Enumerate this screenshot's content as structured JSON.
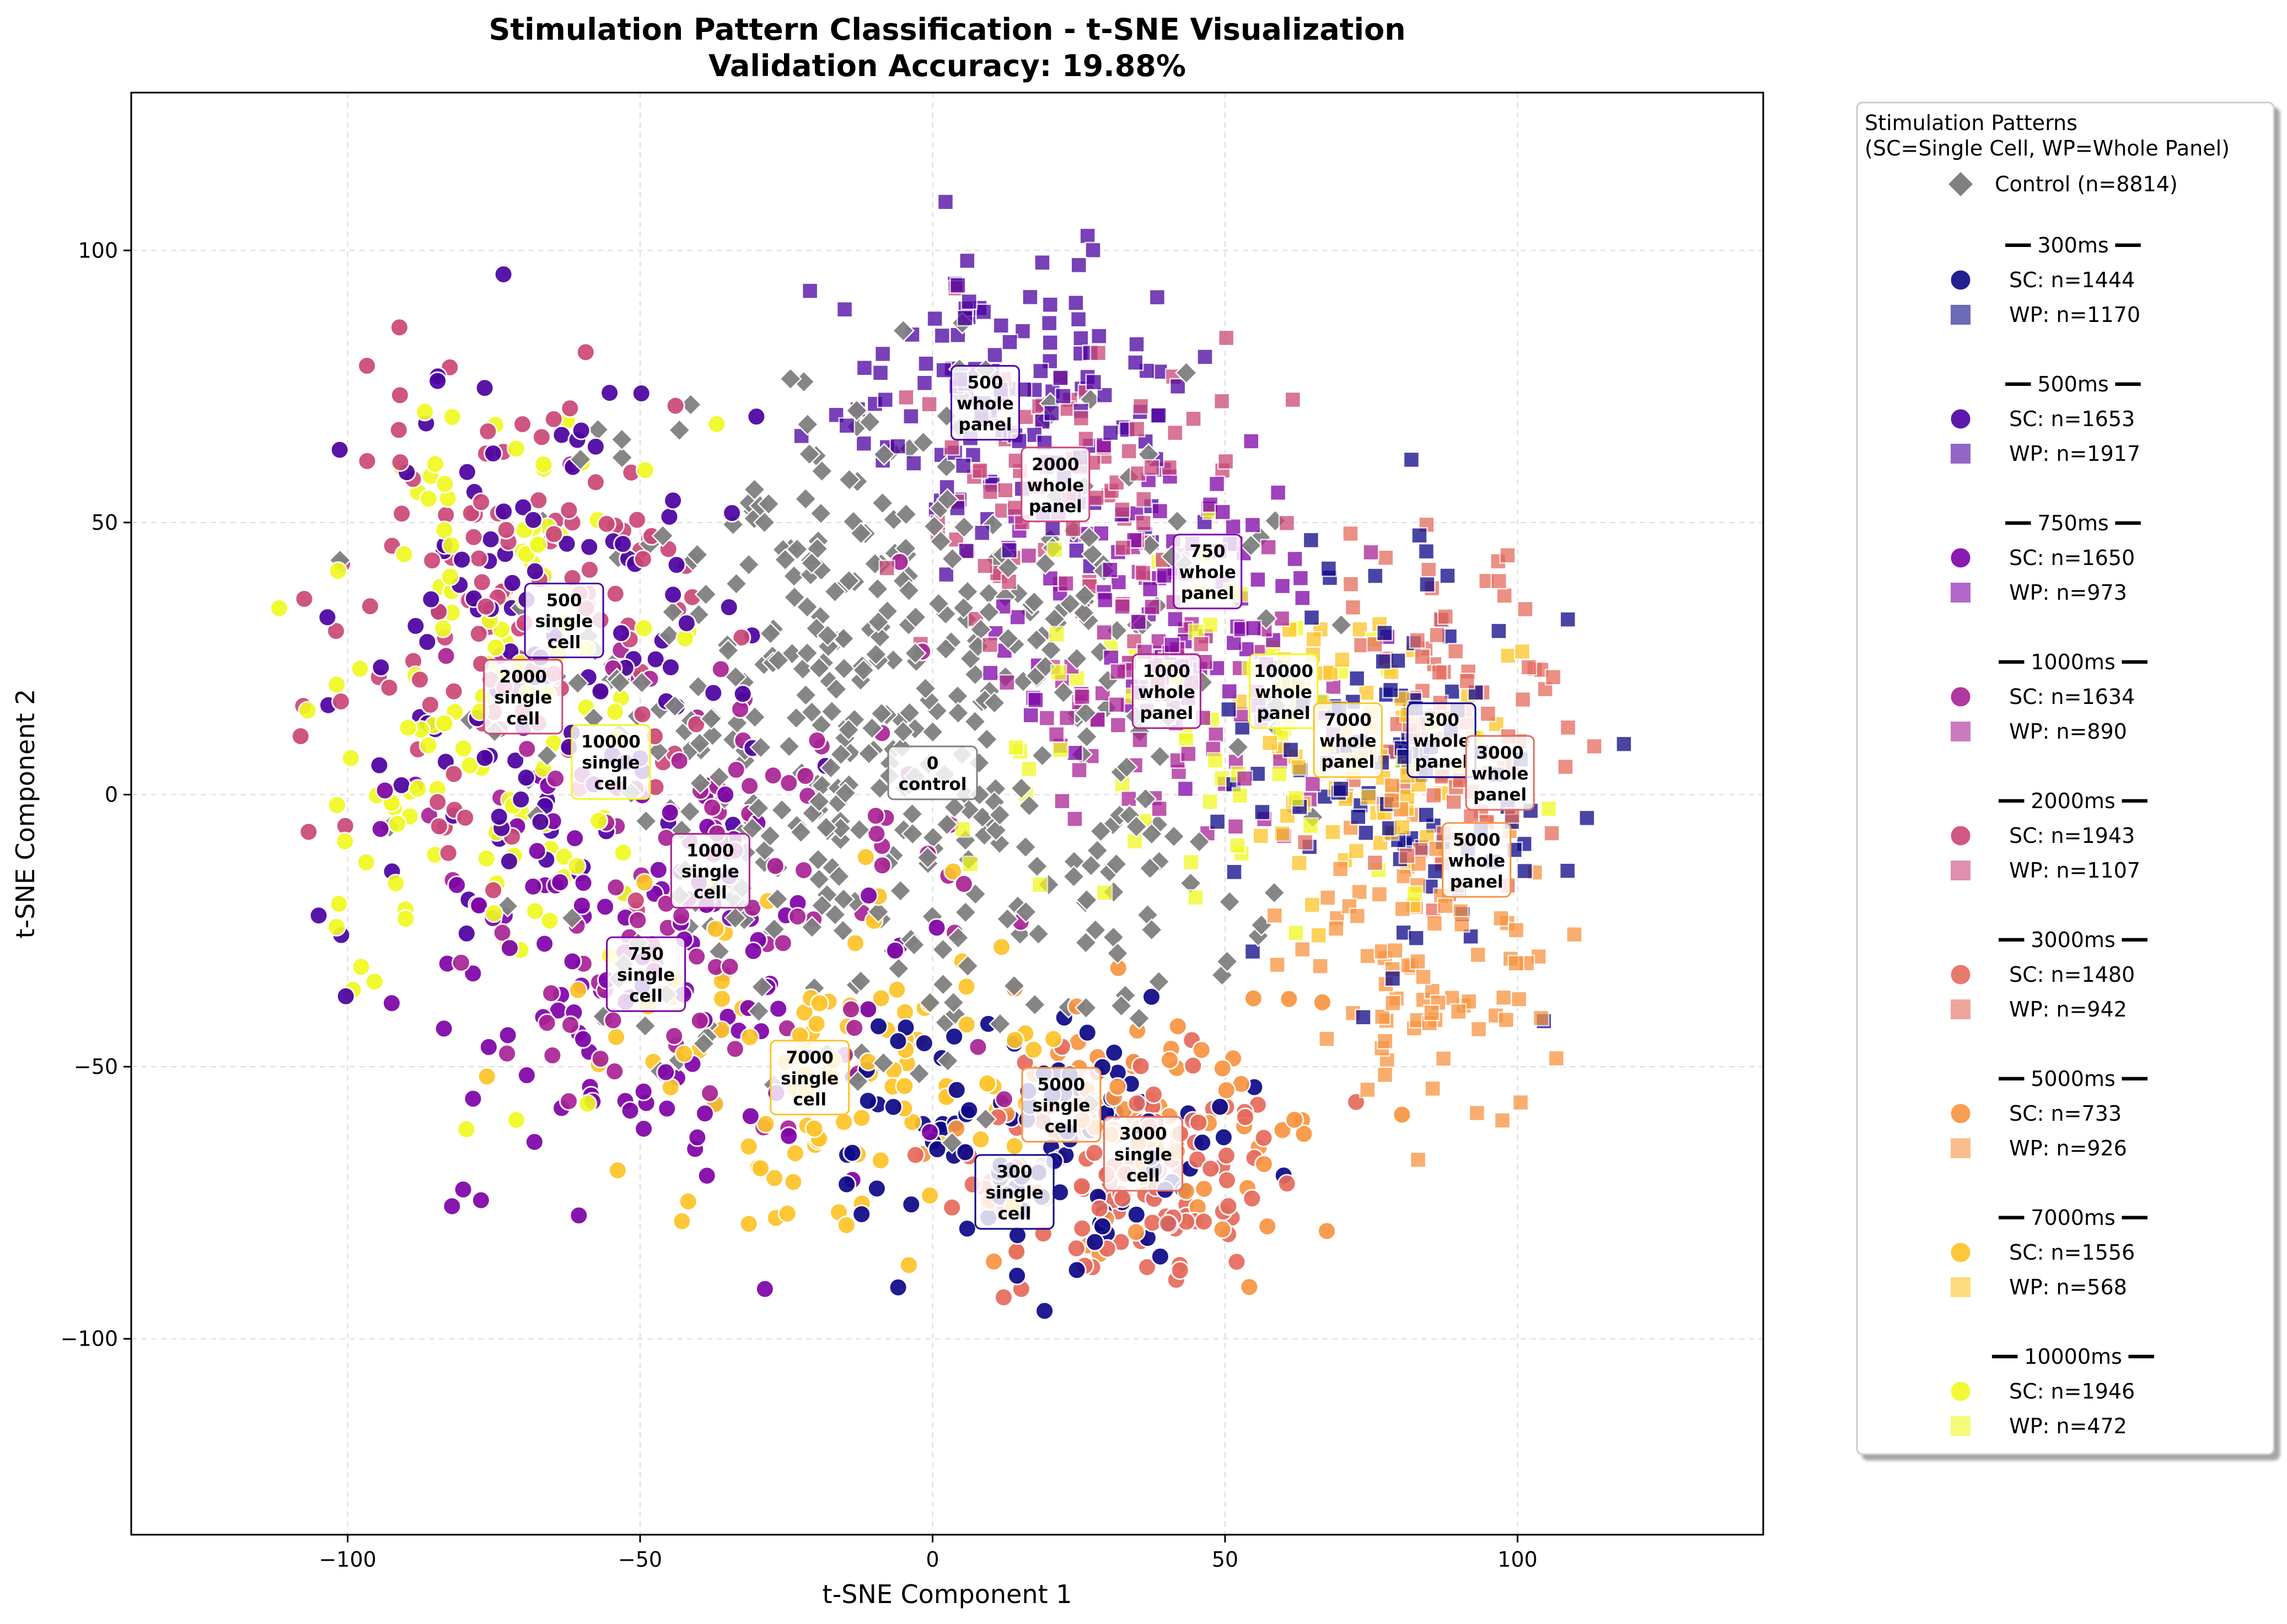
{
  "chart_data": {
    "type": "scatter",
    "title": "Stimulation Pattern Classification - t-SNE Visualization",
    "subtitle": "Validation Accuracy: 19.88%",
    "xlabel": "t-SNE Component 1",
    "ylabel": "t-SNE Component 2",
    "xlim": [
      -137,
      142
    ],
    "ylim": [
      -136,
      129
    ],
    "xticks": [
      -100,
      -50,
      0,
      50,
      100
    ],
    "yticks": [
      -100,
      -50,
      0,
      50,
      100
    ],
    "tick_labels_x": [
      "−100",
      "−50",
      "0",
      "50",
      "100"
    ],
    "tick_labels_y": [
      "−100",
      "−50",
      "0",
      "50",
      "100"
    ],
    "grid": true,
    "legend": {
      "placement": "outside-right",
      "title_line1": "Stimulation Patterns",
      "title_line2": "(SC=Single Cell, WP=Whole Panel)",
      "control": {
        "label": "Control (n=8814)",
        "color": "#808080",
        "marker": "diamond"
      },
      "groups": [
        {
          "header": "━━ 300ms ━━",
          "sc": "SC: n=1444",
          "wp": "WP: n=1170",
          "color": "#0d0887"
        },
        {
          "header": "━━ 500ms ━━",
          "sc": "SC: n=1653",
          "wp": "WP: n=1917",
          "color": "#4c02a1"
        },
        {
          "header": "━━ 750ms ━━",
          "sc": "SC: n=1650",
          "wp": "WP: n=973",
          "color": "#7e03a8"
        },
        {
          "header": "━━ 1000ms ━━",
          "sc": "SC: n=1634",
          "wp": "WP: n=890",
          "color": "#a92395"
        },
        {
          "header": "━━ 2000ms ━━",
          "sc": "SC: n=1943",
          "wp": "WP: n=1107",
          "color": "#cc4778"
        },
        {
          "header": "━━ 3000ms ━━",
          "sc": "SC: n=1480",
          "wp": "WP: n=942",
          "color": "#e56b5d"
        },
        {
          "header": "━━ 5000ms ━━",
          "sc": "SC: n=733",
          "wp": "WP: n=926",
          "color": "#f89441"
        },
        {
          "header": "━━ 7000ms ━━",
          "sc": "SC: n=1556",
          "wp": "WP: n=568",
          "color": "#fdc328"
        },
        {
          "header": "━━ 10000ms ━━",
          "sc": "SC: n=1946",
          "wp": "WP: n=472",
          "color": "#f0f921"
        }
      ]
    },
    "annotations": [
      {
        "lines": [
          "500",
          "whole",
          "panel"
        ],
        "x": 9,
        "y": 72,
        "color": "#4c02a1"
      },
      {
        "lines": [
          "2000",
          "whole",
          "panel"
        ],
        "x": 21,
        "y": 57,
        "color": "#cc4778"
      },
      {
        "lines": [
          "750",
          "whole",
          "panel"
        ],
        "x": 47,
        "y": 41,
        "color": "#7e03a8"
      },
      {
        "lines": [
          "500",
          "single",
          "cell"
        ],
        "x": -63,
        "y": 32,
        "color": "#4c02a1"
      },
      {
        "lines": [
          "2000",
          "single",
          "cell"
        ],
        "x": -70,
        "y": 18,
        "color": "#cc4778"
      },
      {
        "lines": [
          "1000",
          "whole",
          "panel"
        ],
        "x": 40,
        "y": 19,
        "color": "#a92395"
      },
      {
        "lines": [
          "10000",
          "whole",
          "panel"
        ],
        "x": 60,
        "y": 19,
        "color": "#f0f921"
      },
      {
        "lines": [
          "7000",
          "whole",
          "panel"
        ],
        "x": 71,
        "y": 10,
        "color": "#fdc328"
      },
      {
        "lines": [
          "300",
          "whole",
          "panel"
        ],
        "x": 87,
        "y": 10,
        "color": "#0d0887"
      },
      {
        "lines": [
          "3000",
          "whole",
          "panel"
        ],
        "x": 97,
        "y": 4,
        "color": "#e56b5d"
      },
      {
        "lines": [
          "10000",
          "single",
          "cell"
        ],
        "x": -55,
        "y": 6,
        "color": "#f0f921"
      },
      {
        "lines": [
          "0",
          "control"
        ],
        "x": 0,
        "y": 4,
        "color": "#808080"
      },
      {
        "lines": [
          "5000",
          "whole",
          "panel"
        ],
        "x": 93,
        "y": -12,
        "color": "#f89441"
      },
      {
        "lines": [
          "1000",
          "single",
          "cell"
        ],
        "x": -38,
        "y": -14,
        "color": "#a92395"
      },
      {
        "lines": [
          "750",
          "single",
          "cell"
        ],
        "x": -49,
        "y": -33,
        "color": "#7e03a8"
      },
      {
        "lines": [
          "7000",
          "single",
          "cell"
        ],
        "x": -21,
        "y": -52,
        "color": "#fdc328"
      },
      {
        "lines": [
          "5000",
          "single",
          "cell"
        ],
        "x": 22,
        "y": -57,
        "color": "#f89441"
      },
      {
        "lines": [
          "3000",
          "single",
          "cell"
        ],
        "x": 36,
        "y": -66,
        "color": "#e56b5d"
      },
      {
        "lines": [
          "300",
          "single",
          "cell"
        ],
        "x": 14,
        "y": -73,
        "color": "#0d0887"
      }
    ],
    "series": [
      {
        "name": "Control (n=8814)",
        "color": "#808080",
        "marker": "diamond",
        "center": [
          -5,
          12
        ],
        "spread": [
          55,
          55
        ],
        "n": 500
      },
      {
        "name": "SC: n=1444",
        "color": "#0d0887",
        "marker": "circle",
        "center": [
          20,
          -65
        ],
        "spread": [
          30,
          22
        ],
        "n": 110
      },
      {
        "name": "WP: n=1170",
        "color": "#0d0887",
        "marker": "square",
        "center": [
          80,
          5
        ],
        "spread": [
          25,
          35
        ],
        "n": 110
      },
      {
        "name": "SC: n=1653",
        "color": "#4c02a1",
        "marker": "circle",
        "center": [
          -65,
          30
        ],
        "spread": [
          35,
          50
        ],
        "n": 120
      },
      {
        "name": "WP: n=1917",
        "color": "#4c02a1",
        "marker": "square",
        "center": [
          15,
          70
        ],
        "spread": [
          25,
          25
        ],
        "n": 140
      },
      {
        "name": "SC: n=1650",
        "color": "#7e03a8",
        "marker": "circle",
        "center": [
          -50,
          -35
        ],
        "spread": [
          40,
          40
        ],
        "n": 120
      },
      {
        "name": "WP: n=973",
        "color": "#7e03a8",
        "marker": "square",
        "center": [
          40,
          35
        ],
        "spread": [
          25,
          25
        ],
        "n": 90
      },
      {
        "name": "SC: n=1634",
        "color": "#a92395",
        "marker": "circle",
        "center": [
          -40,
          -10
        ],
        "spread": [
          40,
          45
        ],
        "n": 120
      },
      {
        "name": "WP: n=890",
        "color": "#a92395",
        "marker": "square",
        "center": [
          40,
          20
        ],
        "spread": [
          25,
          25
        ],
        "n": 85
      },
      {
        "name": "SC: n=1943",
        "color": "#cc4778",
        "marker": "circle",
        "center": [
          -70,
          30
        ],
        "spread": [
          30,
          40
        ],
        "n": 130
      },
      {
        "name": "WP: n=1107",
        "color": "#cc4778",
        "marker": "square",
        "center": [
          25,
          55
        ],
        "spread": [
          25,
          25
        ],
        "n": 90
      },
      {
        "name": "SC: n=1480",
        "color": "#e56b5d",
        "marker": "circle",
        "center": [
          35,
          -70
        ],
        "spread": [
          30,
          20
        ],
        "n": 110
      },
      {
        "name": "WP: n=942",
        "color": "#e56b5d",
        "marker": "square",
        "center": [
          90,
          15
        ],
        "spread": [
          20,
          30
        ],
        "n": 90
      },
      {
        "name": "SC: n=733",
        "color": "#f89441",
        "marker": "circle",
        "center": [
          40,
          -60
        ],
        "spread": [
          30,
          20
        ],
        "n": 80
      },
      {
        "name": "WP: n=926",
        "color": "#f89441",
        "marker": "square",
        "center": [
          85,
          -30
        ],
        "spread": [
          20,
          30
        ],
        "n": 90
      },
      {
        "name": "SC: n=1556",
        "color": "#fdc328",
        "marker": "circle",
        "center": [
          -15,
          -55
        ],
        "spread": [
          35,
          30
        ],
        "n": 110
      },
      {
        "name": "WP: n=568",
        "color": "#fdc328",
        "marker": "square",
        "center": [
          75,
          5
        ],
        "spread": [
          20,
          25
        ],
        "n": 70
      },
      {
        "name": "SC: n=1946",
        "color": "#f0f921",
        "marker": "circle",
        "center": [
          -75,
          20
        ],
        "spread": [
          30,
          55
        ],
        "n": 130
      },
      {
        "name": "WP: n=472",
        "color": "#f0f921",
        "marker": "square",
        "center": [
          50,
          10
        ],
        "spread": [
          35,
          30
        ],
        "n": 70
      }
    ]
  }
}
